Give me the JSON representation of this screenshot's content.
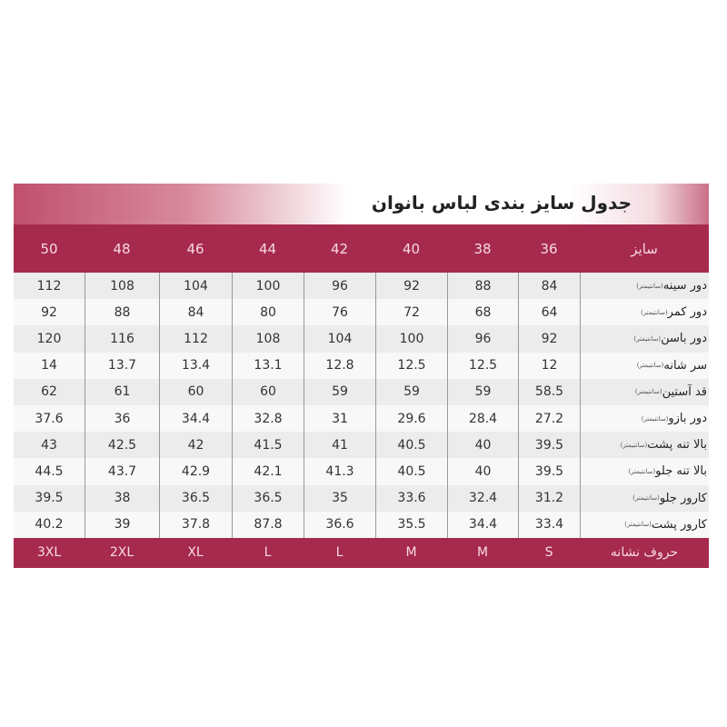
{
  "title": "جدول سایز بندی  لباس  بانوان",
  "header": {
    "label": "سایز",
    "sizes": [
      "36",
      "38",
      "40",
      "42",
      "44",
      "46",
      "48",
      "50"
    ]
  },
  "unit": "(سانتیمتر)",
  "rows": [
    {
      "label": "دور سینه",
      "values": [
        "84",
        "88",
        "92",
        "96",
        "100",
        "104",
        "108",
        "112"
      ]
    },
    {
      "label": "دور کمر",
      "values": [
        "64",
        "68",
        "72",
        "76",
        "80",
        "84",
        "88",
        "92"
      ]
    },
    {
      "label": "دور باسن",
      "values": [
        "92",
        "96",
        "100",
        "104",
        "108",
        "112",
        "116",
        "120"
      ]
    },
    {
      "label": "سر شانه",
      "values": [
        "12",
        "12.5",
        "12.5",
        "12.8",
        "13.1",
        "13.4",
        "13.7",
        "14"
      ]
    },
    {
      "label": "قد آستین",
      "values": [
        "58.5",
        "59",
        "59",
        "59",
        "60",
        "60",
        "61",
        "62"
      ]
    },
    {
      "label": "دور بازو",
      "values": [
        "27.2",
        "28.4",
        "29.6",
        "31",
        "32.8",
        "34.4",
        "36",
        "37.6"
      ]
    },
    {
      "label": "بالا تنه پشت",
      "values": [
        "39.5",
        "40",
        "40.5",
        "41",
        "41.5",
        "42",
        "42.5",
        "43"
      ]
    },
    {
      "label": "بالا تنه جلو",
      "values": [
        "39.5",
        "40",
        "40.5",
        "41.3",
        "42.1",
        "42.9",
        "43.7",
        "44.5"
      ]
    },
    {
      "label": "کارور جلو",
      "values": [
        "31.2",
        "32.4",
        "33.6",
        "35",
        "36.5",
        "36.5",
        "38",
        "39.5"
      ]
    },
    {
      "label": "کارور پشت",
      "values": [
        "33.4",
        "34.4",
        "35.5",
        "36.6",
        "87.8",
        "37.8",
        "39",
        "40.2"
      ]
    }
  ],
  "footer": {
    "label": "حروف  نشانه",
    "letters": [
      "S",
      "M",
      "M",
      "L",
      "L",
      "XL",
      "2XL",
      "3XL"
    ]
  },
  "colors": {
    "accent": "#a62a4d",
    "row_alt": "#ececec"
  }
}
